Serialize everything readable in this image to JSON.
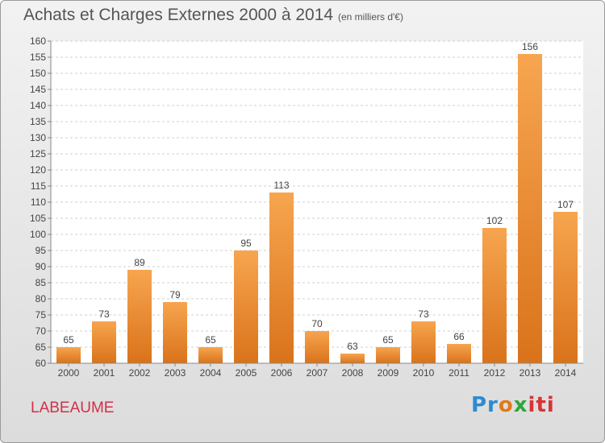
{
  "header": {
    "title": "Achats et Charges Externes 2000 à 2014",
    "subtitle": "(en milliers d'€)"
  },
  "footer": {
    "place": "LABEAUME",
    "logo_text": "Proxiti"
  },
  "colors": {
    "bar_top": "#f7a54f",
    "bar_bottom": "#d9731b",
    "grid": "#cfcfcf",
    "place_text": "#d0304a"
  },
  "chart_data": {
    "type": "bar",
    "title": "Achats et Charges Externes 2000 à 2014",
    "subtitle": "(en milliers d'€)",
    "categories": [
      "2000",
      "2001",
      "2002",
      "2003",
      "2004",
      "2005",
      "2006",
      "2007",
      "2008",
      "2009",
      "2010",
      "2011",
      "2012",
      "2013",
      "2014"
    ],
    "values": [
      65,
      73,
      89,
      79,
      65,
      95,
      113,
      70,
      63,
      65,
      73,
      66,
      102,
      156,
      107
    ],
    "ylim": [
      60,
      160
    ],
    "ytick_step": 5,
    "grid": true,
    "legend": "none",
    "xlabel": "",
    "ylabel": ""
  }
}
